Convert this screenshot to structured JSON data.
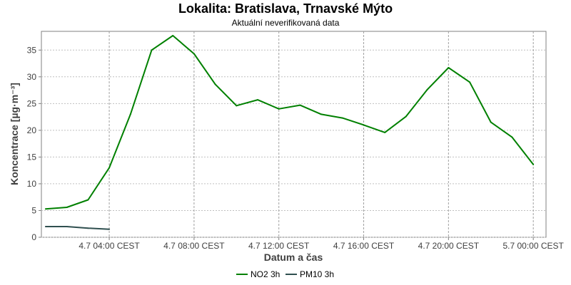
{
  "chart_data": {
    "type": "line",
    "title": "Lokalita: Bratislava, Trnavské Mýto",
    "subtitle": "Aktuální neverifikovaná data",
    "xlabel": "Datum a čas",
    "ylabel": "Koncentrace [µg·m⁻³]",
    "x_unit": "hours after 4.7 00:00 CEST",
    "xlim": [
      0.8,
      24.6
    ],
    "ylim": [
      0,
      38.5
    ],
    "x_ticks": [
      {
        "value": 4,
        "label": "4.7 04:00 CEST"
      },
      {
        "value": 8,
        "label": "4.7 08:00 CEST"
      },
      {
        "value": 12,
        "label": "4.7 12:00 CEST"
      },
      {
        "value": 16,
        "label": "4.7 16:00 CEST"
      },
      {
        "value": 20,
        "label": "4.7 20:00 CEST"
      },
      {
        "value": 24,
        "label": "5.7 00:00 CEST"
      }
    ],
    "y_ticks": [
      0,
      5,
      10,
      15,
      20,
      25,
      30,
      35
    ],
    "grid": true,
    "legend_position": "bottom-center",
    "series": [
      {
        "name": "NO2 3h",
        "color": "#008000",
        "x": [
          1,
          2,
          3,
          4,
          5,
          6,
          7,
          8,
          9,
          10,
          11,
          12,
          13,
          14,
          15,
          16,
          17,
          18,
          19,
          20,
          21,
          22,
          23,
          24
        ],
        "y": [
          5.3,
          5.6,
          7.0,
          13.0,
          23.0,
          35.0,
          37.7,
          34.3,
          28.6,
          24.6,
          25.7,
          24.0,
          24.7,
          23.0,
          22.3,
          21.0,
          19.6,
          22.6,
          27.6,
          31.7,
          29.0,
          21.5,
          18.7,
          13.6
        ]
      },
      {
        "name": "PM10 3h",
        "color": "#2f4f4f",
        "x": [
          1,
          2,
          3,
          4
        ],
        "y": [
          2.0,
          2.0,
          1.7,
          1.5
        ]
      }
    ]
  }
}
